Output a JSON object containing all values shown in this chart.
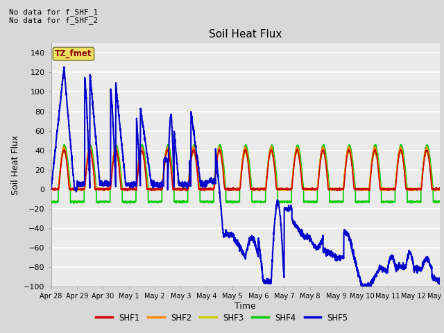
{
  "title": "Soil Heat Flux",
  "xlabel": "Time",
  "ylabel": "Soil Heat Flux",
  "ylim": [
    -100,
    150
  ],
  "yticks": [
    -100,
    -80,
    -60,
    -40,
    -20,
    0,
    20,
    40,
    60,
    80,
    100,
    120,
    140
  ],
  "annotation_text": "No data for f_SHF_1\nNo data for f_SHF_2",
  "legend_label": "TZ_fmet",
  "series_colors": {
    "SHF1": "#cc0000",
    "SHF2": "#ff8800",
    "SHF3": "#cccc00",
    "SHF4": "#00cc00",
    "SHF5": "#0000cc"
  },
  "background_color": "#d8d8d8",
  "plot_bg_color": "#ebebeb",
  "grid_color": "#ffffff",
  "x_ticks": [
    0,
    1,
    2,
    3,
    4,
    5,
    6,
    7,
    8,
    9,
    10,
    11,
    12,
    13,
    14,
    15
  ],
  "x_tick_labels": [
    "Apr 28",
    "Apr 29",
    "Apr 30",
    "May 1",
    "May 2",
    "May 3",
    "May 4",
    "May 5",
    "May 6",
    "May 7",
    "May 8",
    "May 9",
    "May 10",
    "May 11",
    "May 12",
    "May 13"
  ]
}
